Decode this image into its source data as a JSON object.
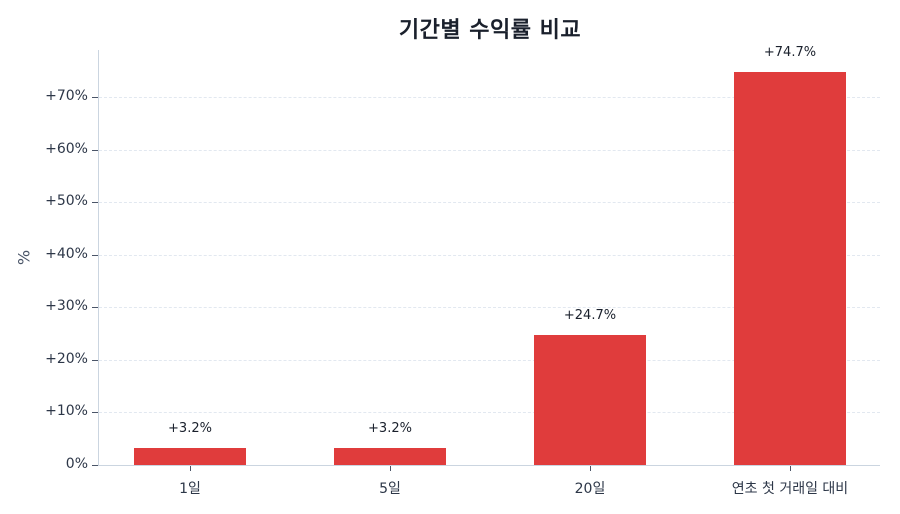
{
  "chart_data": {
    "type": "bar",
    "title": "기간별 수익률 비교",
    "xlabel": "",
    "ylabel": "%",
    "categories": [
      "1일",
      "5일",
      "20일",
      "연초 첫 거래일 대비"
    ],
    "values": [
      3.2,
      3.2,
      24.7,
      74.7
    ],
    "value_labels": [
      "+3.2%",
      "+3.2%",
      "+24.7%",
      "+74.7%"
    ],
    "ylim": [
      0,
      79
    ],
    "yticks": [
      0,
      10,
      20,
      30,
      40,
      50,
      60,
      70
    ],
    "ytick_labels": [
      "0%",
      "+10%",
      "+20%",
      "+30%",
      "+40%",
      "+50%",
      "+60%",
      "+70%"
    ],
    "grid": "horizontal dashed",
    "legend": null,
    "bar_color": "#e03c3c"
  }
}
